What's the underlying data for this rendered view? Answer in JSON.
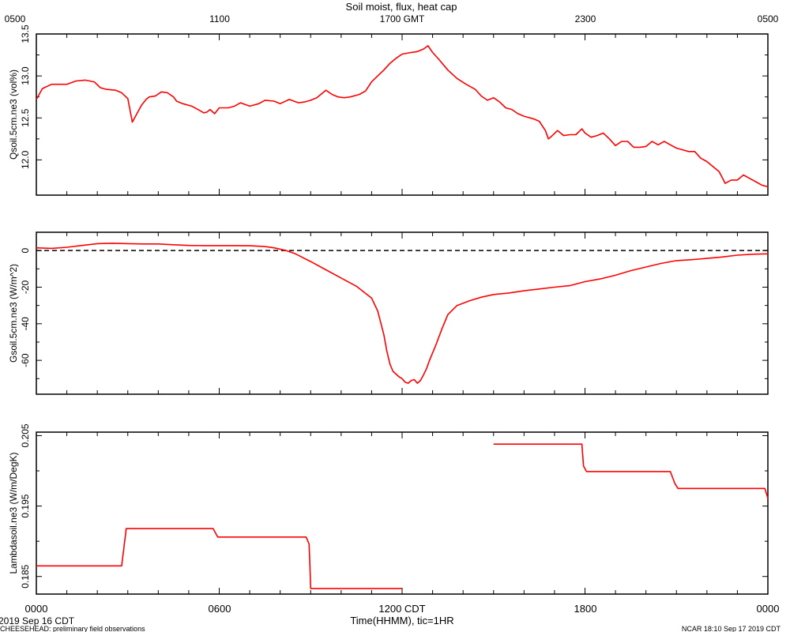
{
  "title": "Soil moist, flux, heat cap",
  "top_axis_ticks": [
    "0500",
    "1100",
    "1700 GMT",
    "2300",
    "0500"
  ],
  "bottom_axis_ticks": [
    "0000",
    "0600",
    "1200 CDT",
    "1800",
    "0000"
  ],
  "x_axis_label": "Time(HHMM), tic=1HR",
  "date_label": "2019 Sep 16 CDT",
  "footer_left": "CHEESEHEAD: preliminary field observations",
  "footer_right": "NCAR 18:10 Sep 17 2019 CDT",
  "colors": {
    "series": "#ff0000",
    "axes": "#000000",
    "reference_line": "#000000"
  },
  "chart_data": [
    {
      "type": "line",
      "ylabel": "Qsoil.5cm.ne3 (vol%)",
      "xlim": [
        0,
        24
      ],
      "ylim": [
        11.58,
        13.5
      ],
      "yticks": [
        "12.0",
        "12.5",
        "13.0",
        "13.5"
      ],
      "grid": false,
      "x": [
        0.0,
        0.2,
        0.5,
        1.0,
        1.3,
        1.6,
        1.9,
        2.1,
        2.3,
        2.6,
        2.8,
        3.0,
        3.15,
        3.3,
        3.45,
        3.6,
        3.7,
        3.9,
        4.1,
        4.3,
        4.5,
        4.6,
        4.8,
        5.1,
        5.3,
        5.5,
        5.6,
        5.7,
        5.85,
        6.0,
        6.3,
        6.5,
        6.7,
        7.0,
        7.3,
        7.5,
        7.8,
        8.0,
        8.3,
        8.6,
        8.8,
        9.0,
        9.2,
        9.5,
        9.7,
        9.9,
        10.1,
        10.3,
        10.6,
        10.8,
        11.0,
        11.2,
        11.4,
        11.6,
        11.8,
        12.0,
        12.3,
        12.5,
        12.7,
        12.85,
        13.0,
        13.2,
        13.5,
        13.8,
        14.1,
        14.4,
        14.6,
        14.8,
        15.0,
        15.2,
        15.4,
        15.6,
        15.8,
        16.0,
        16.3,
        16.5,
        16.7,
        16.8,
        16.9,
        17.1,
        17.3,
        17.5,
        17.7,
        17.9,
        18.0,
        18.2,
        18.4,
        18.6,
        18.8,
        19.0,
        19.2,
        19.4,
        19.6,
        19.8,
        20.0,
        20.2,
        20.4,
        20.6,
        20.8,
        21.0,
        21.2,
        21.4,
        21.6,
        21.8,
        22.0,
        22.2,
        22.4,
        22.6,
        22.8,
        23.0,
        23.2,
        23.4,
        23.6,
        23.8,
        24.0
      ],
      "y": [
        12.72,
        12.85,
        12.9,
        12.9,
        12.94,
        12.95,
        12.93,
        12.86,
        12.84,
        12.83,
        12.8,
        12.73,
        12.45,
        12.55,
        12.65,
        12.72,
        12.75,
        12.76,
        12.81,
        12.8,
        12.75,
        12.7,
        12.67,
        12.64,
        12.6,
        12.56,
        12.57,
        12.6,
        12.55,
        12.62,
        12.62,
        12.64,
        12.68,
        12.64,
        12.67,
        12.71,
        12.7,
        12.67,
        12.72,
        12.68,
        12.69,
        12.71,
        12.74,
        12.83,
        12.78,
        12.75,
        12.74,
        12.75,
        12.78,
        12.82,
        12.93,
        13.0,
        13.07,
        13.15,
        13.21,
        13.26,
        13.28,
        13.29,
        13.32,
        13.36,
        13.28,
        13.2,
        13.07,
        12.97,
        12.9,
        12.84,
        12.76,
        12.71,
        12.74,
        12.69,
        12.62,
        12.6,
        12.55,
        12.52,
        12.49,
        12.46,
        12.35,
        12.25,
        12.28,
        12.35,
        12.29,
        12.3,
        12.3,
        12.37,
        12.32,
        12.27,
        12.29,
        12.32,
        12.25,
        12.17,
        12.22,
        12.22,
        12.15,
        12.15,
        12.16,
        12.22,
        12.18,
        12.22,
        12.18,
        12.14,
        12.12,
        12.1,
        12.1,
        12.02,
        11.98,
        11.92,
        11.86,
        11.72,
        11.76,
        11.76,
        11.82,
        11.78,
        11.74,
        11.7,
        11.68
      ]
    },
    {
      "type": "line",
      "ylabel": "Gsoil.5cm.ne3 (W/m^2)",
      "xlim": [
        0,
        24
      ],
      "ylim": [
        -78.5,
        10
      ],
      "yticks": [
        "-60",
        "-40",
        "-20",
        "0"
      ],
      "reference_line": 0,
      "grid": false,
      "x": [
        0.0,
        0.5,
        1.0,
        1.5,
        2.0,
        2.5,
        3.0,
        3.5,
        4.0,
        4.5,
        5.0,
        5.5,
        6.0,
        6.5,
        7.0,
        7.5,
        7.8,
        8.2,
        8.5,
        9.0,
        9.5,
        10.0,
        10.5,
        11.0,
        11.2,
        11.4,
        11.5,
        11.6,
        11.7,
        11.8,
        11.9,
        12.0,
        12.1,
        12.2,
        12.3,
        12.4,
        12.5,
        12.6,
        12.7,
        12.8,
        12.9,
        13.1,
        13.3,
        13.5,
        13.8,
        14.2,
        14.6,
        15.0,
        15.5,
        16.0,
        16.5,
        17.0,
        17.5,
        18.0,
        18.5,
        19.0,
        19.5,
        20.0,
        20.5,
        21.0,
        21.5,
        22.0,
        22.5,
        23.0,
        23.5,
        24.0
      ],
      "y": [
        1.5,
        1.2,
        1.8,
        2.8,
        3.8,
        4.0,
        3.8,
        3.6,
        3.6,
        3.2,
        2.8,
        2.7,
        2.7,
        2.7,
        2.6,
        2.2,
        1.5,
        0.0,
        -1.8,
        -6.0,
        -10.5,
        -15.0,
        -19.5,
        -26.0,
        -33.0,
        -46.0,
        -55.0,
        -62.0,
        -66.0,
        -67.5,
        -69.0,
        -70.0,
        -72.0,
        -72.5,
        -71.0,
        -70.5,
        -72.5,
        -71.0,
        -68.0,
        -64.5,
        -60.0,
        -52.0,
        -43.0,
        -35.0,
        -30.0,
        -27.5,
        -25.5,
        -24.0,
        -23.2,
        -22.0,
        -21.0,
        -20.0,
        -19.2,
        -17.0,
        -15.5,
        -13.5,
        -11.0,
        -9.0,
        -7.0,
        -5.5,
        -5.0,
        -4.3,
        -3.5,
        -2.5,
        -2.0,
        -1.8
      ]
    },
    {
      "type": "line",
      "ylabel": "Lambdasoil.ne3 (W/m/DegK)",
      "xlim": [
        0,
        24
      ],
      "ylim": [
        0.1825,
        0.2055
      ],
      "yticks": [
        "0.185",
        "0.195",
        "0.205"
      ],
      "grid": false,
      "series": [
        {
          "x": [
            0.0,
            2.8,
            2.95,
            5.8,
            5.95,
            8.85,
            8.95,
            9.0,
            12.0
          ],
          "y": [
            0.1865,
            0.1865,
            0.1918,
            0.1918,
            0.1906,
            0.1906,
            0.1896,
            0.1833,
            0.1833
          ]
        },
        {
          "x": [
            15.0,
            17.9,
            17.95,
            18.05,
            20.8,
            20.95,
            21.05,
            23.9,
            24.0
          ],
          "y": [
            0.2038,
            0.2038,
            0.2007,
            0.1999,
            0.1999,
            0.1982,
            0.1975,
            0.1975,
            0.1961
          ]
        }
      ]
    }
  ]
}
